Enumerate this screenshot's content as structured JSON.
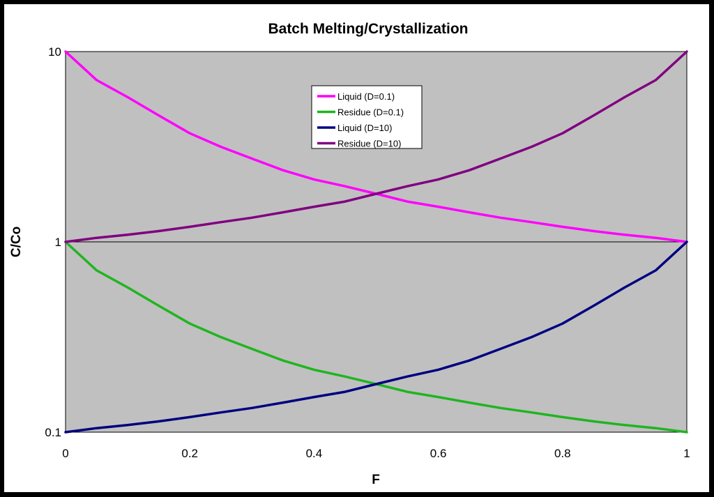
{
  "chart_data": {
    "type": "line",
    "title": "Batch Melting/Crystallization",
    "xlabel": "F",
    "ylabel": "C/Co",
    "xlim": [
      0,
      1
    ],
    "ylim": [
      0.1,
      10
    ],
    "yscale": "log",
    "x_ticks": [
      "0",
      "0.2",
      "0.4",
      "0.6",
      "0.8",
      "1"
    ],
    "y_ticks": [
      "0.1",
      "1",
      "10"
    ],
    "x_tick_values": [
      0,
      0.2,
      0.4,
      0.6,
      0.8,
      1
    ],
    "y_tick_values": [
      0.1,
      1,
      10
    ],
    "grid": "horizontal major at 1",
    "plot_background": "#c0c0c0",
    "legend_position": "top-center",
    "x": [
      0,
      0.05,
      0.1,
      0.15,
      0.2,
      0.25,
      0.3,
      0.35,
      0.4,
      0.45,
      0.5,
      0.55,
      0.6,
      0.65,
      0.7,
      0.75,
      0.8,
      0.85,
      0.9,
      0.95,
      1
    ],
    "series": [
      {
        "name": "Liquid (D=0.1)",
        "color": "#ff00ff",
        "values": [
          10,
          7.08,
          5.76,
          4.62,
          3.72,
          3.16,
          2.74,
          2.38,
          2.13,
          1.96,
          1.79,
          1.63,
          1.53,
          1.43,
          1.34,
          1.27,
          1.2,
          1.14,
          1.09,
          1.05,
          1
        ]
      },
      {
        "name": "Residue (D=0.1)",
        "color": "#1fb51f",
        "values": [
          1,
          0.708,
          0.576,
          0.462,
          0.372,
          0.316,
          0.274,
          0.238,
          0.213,
          0.196,
          0.179,
          0.163,
          0.153,
          0.143,
          0.134,
          0.127,
          0.12,
          0.114,
          0.109,
          0.105,
          0.1
        ]
      },
      {
        "name": "Liquid (D=10)",
        "color": "#000080",
        "values": [
          0.1,
          0.105,
          0.109,
          0.114,
          0.12,
          0.127,
          0.134,
          0.143,
          0.153,
          0.163,
          0.179,
          0.196,
          0.213,
          0.238,
          0.274,
          0.316,
          0.372,
          0.462,
          0.576,
          0.708,
          1
        ]
      },
      {
        "name": "Residue (D=10)",
        "color": "#800080",
        "values": [
          1,
          1.05,
          1.09,
          1.14,
          1.2,
          1.27,
          1.34,
          1.43,
          1.53,
          1.63,
          1.79,
          1.96,
          2.13,
          2.38,
          2.74,
          3.16,
          3.72,
          4.62,
          5.76,
          7.08,
          10
        ]
      }
    ]
  }
}
